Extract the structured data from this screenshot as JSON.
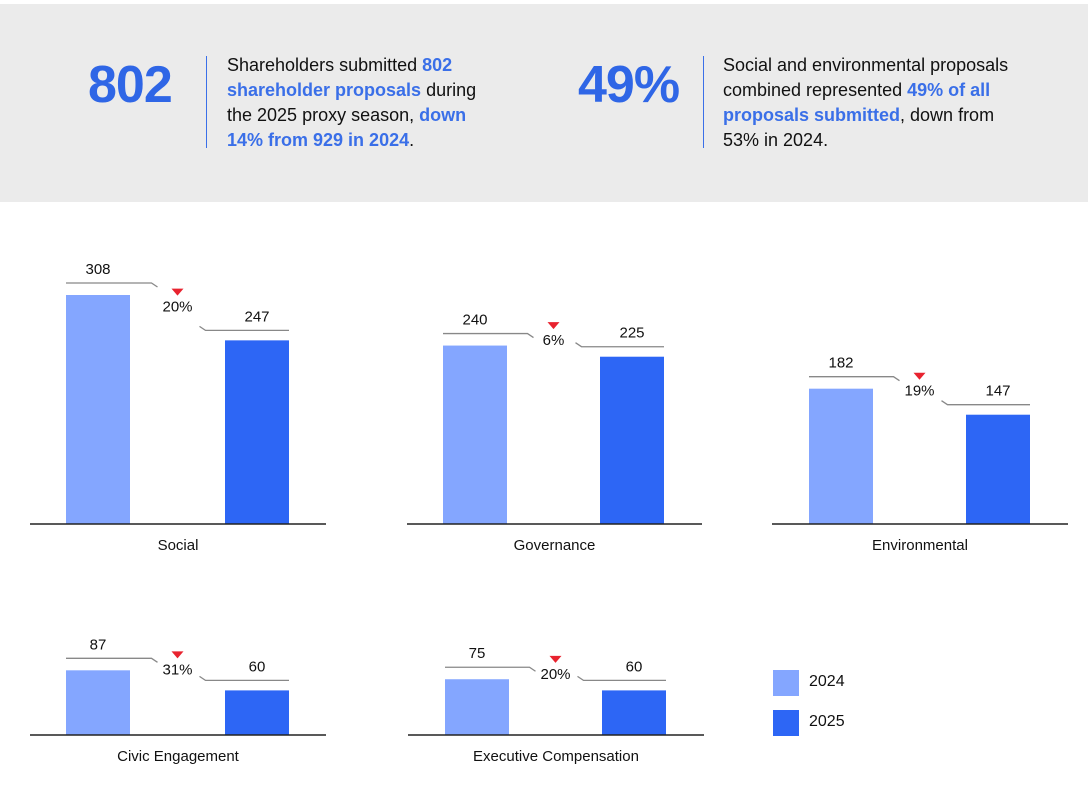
{
  "header": {
    "stats": [
      {
        "number": "802",
        "parts": [
          {
            "text": "Shareholders submitted ",
            "hl": false
          },
          {
            "text": "802 shareholder proposals",
            "hl": true
          },
          {
            "text": " during the 2025 proxy season, ",
            "hl": false
          },
          {
            "text": "down 14% from 929 in 2024",
            "hl": true
          },
          {
            "text": ".",
            "hl": false
          }
        ]
      },
      {
        "number": "49%",
        "parts": [
          {
            "text": "Social and environmental proposals combined represented ",
            "hl": false
          },
          {
            "text": "49% of all proposals submitted",
            "hl": true
          },
          {
            "text": ", down from 53% in 2024.",
            "hl": false
          }
        ]
      }
    ]
  },
  "legend": [
    {
      "label": "2024",
      "color": "#84a6ff"
    },
    {
      "label": "2025",
      "color": "#2d66f5"
    }
  ],
  "colors": {
    "highlight": "#3a6fe8",
    "down_arrow": "#e8232f",
    "axis": "#222222",
    "connector": "#888888"
  },
  "chart_data": [
    {
      "type": "bar",
      "category": "Social",
      "series_names": [
        "2024",
        "2025"
      ],
      "values": [
        308,
        247
      ],
      "change_label": "20%",
      "direction": "down"
    },
    {
      "type": "bar",
      "category": "Governance",
      "series_names": [
        "2024",
        "2025"
      ],
      "values": [
        240,
        225
      ],
      "change_label": "6%",
      "direction": "down"
    },
    {
      "type": "bar",
      "category": "Environmental",
      "series_names": [
        "2024",
        "2025"
      ],
      "values": [
        182,
        147
      ],
      "change_label": "19%",
      "direction": "down"
    },
    {
      "type": "bar",
      "category": "Civic Engagement",
      "series_names": [
        "2024",
        "2025"
      ],
      "values": [
        87,
        60
      ],
      "change_label": "31%",
      "direction": "down"
    },
    {
      "type": "bar",
      "category": "Executive Compensation",
      "series_names": [
        "2024",
        "2025"
      ],
      "values": [
        75,
        60
      ],
      "change_label": "20%",
      "direction": "down"
    }
  ]
}
